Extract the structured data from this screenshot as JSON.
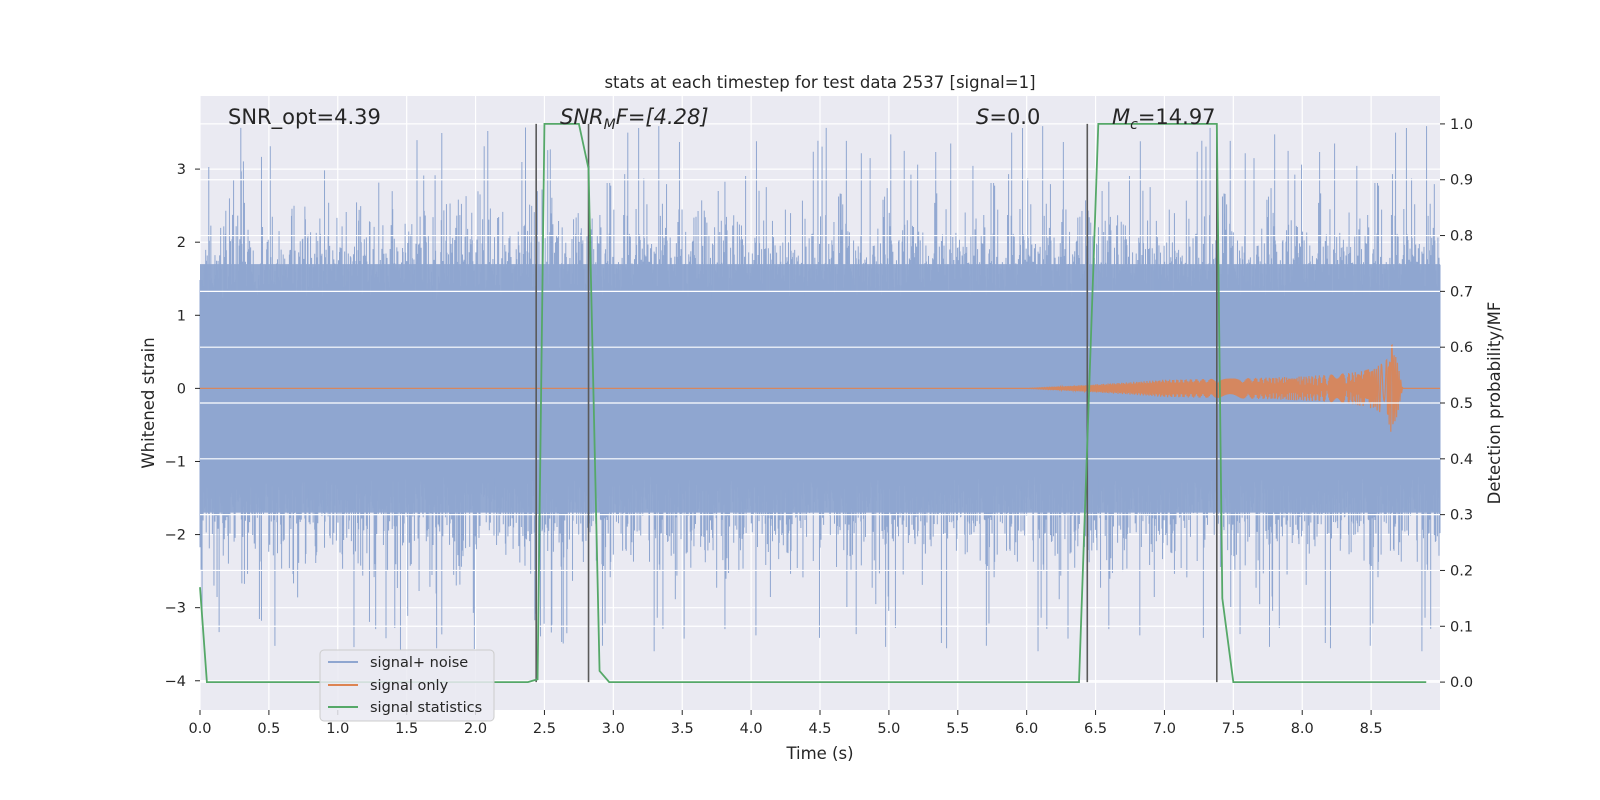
{
  "chart_data": {
    "type": "line",
    "title": "stats at each timestep for test data 2537 [signal=1]",
    "xlabel": "Time (s)",
    "ylabel": "Whitened strain",
    "y2label": "Detection probability/MF",
    "xlim": [
      0.0,
      9.0
    ],
    "ylim": [
      -4.4,
      4.0
    ],
    "y2lim": [
      -0.05,
      1.05
    ],
    "xticks": [
      "0.0",
      "0.5",
      "1.0",
      "1.5",
      "2.0",
      "2.5",
      "3.0",
      "3.5",
      "4.0",
      "4.5",
      "5.0",
      "5.5",
      "6.0",
      "6.5",
      "7.0",
      "7.5",
      "8.0",
      "8.5"
    ],
    "yticks": [
      "3",
      "2",
      "1",
      "0",
      "−1",
      "−2",
      "−3",
      "−4"
    ],
    "y2ticks": [
      "1.0",
      "0.9",
      "0.8",
      "0.7",
      "0.6",
      "0.5",
      "0.4",
      "0.3",
      "0.2",
      "0.1",
      "0.0"
    ],
    "grid": true,
    "legend_position": "lower-left",
    "annotations": {
      "snr_opt": "SNR_opt=4.39",
      "snr_mf_main": "SNR",
      "snr_mf_sub": "M",
      "snr_mf_rest": "F=[4.28]",
      "s_main": "S",
      "s_rest": "=0.0",
      "mc_main": "M",
      "mc_sub": "c",
      "mc_rest": "=14.97"
    },
    "series": [
      {
        "name": "signal+ noise",
        "color": "#8fa6d0",
        "description_only": false,
        "envelope": {
          "typical_range": [
            -1.7,
            1.7
          ],
          "extremes": [
            -3.6,
            3.6
          ]
        }
      },
      {
        "name": "signal only",
        "color": "#dd8452",
        "chirp": {
          "start_time": 6.0,
          "merger_time": 8.65,
          "peak_amplitude": 0.72
        }
      },
      {
        "name": "signal statistics",
        "color": "#55a868",
        "x": [
          0.0,
          0.05,
          0.1,
          1.0,
          2.0,
          2.38,
          2.45,
          2.5,
          2.75,
          2.82,
          2.9,
          2.97,
          3.5,
          6.0,
          6.38,
          6.45,
          6.52,
          7.3,
          7.38,
          7.42,
          7.5,
          8.0,
          8.9
        ],
        "y": [
          0.17,
          0.0,
          0.0,
          0.0,
          0.0,
          0.0,
          0.005,
          1.0,
          1.0,
          0.92,
          0.02,
          0.0,
          0.0,
          0.0,
          0.0,
          0.5,
          1.0,
          1.0,
          1.0,
          0.15,
          0.0,
          0.0,
          0.0
        ]
      }
    ],
    "vlines": [
      2.44,
      2.82,
      6.44,
      7.38
    ]
  }
}
